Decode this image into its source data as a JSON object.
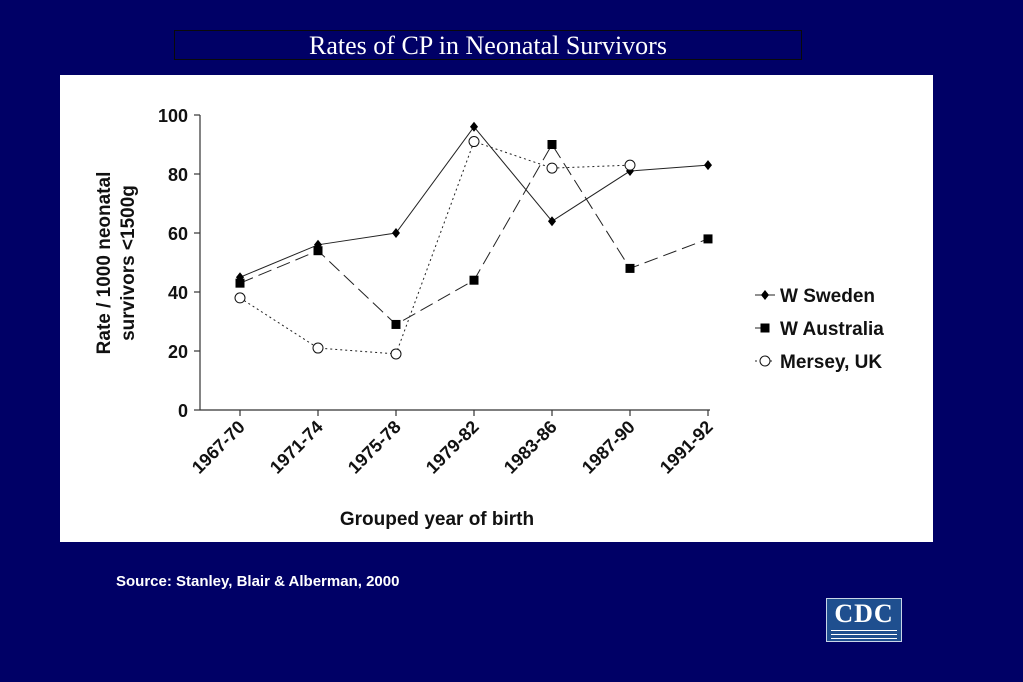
{
  "slide": {
    "title": "Rates of CP in Neonatal Survivors",
    "source": "Source: Stanley, Blair & Alberman, 2000",
    "logo_text": "CDC",
    "background": "#000066"
  },
  "chart_data": {
    "type": "line",
    "title": "",
    "xlabel": "Grouped year of birth",
    "ylabel_lines": [
      "Rate / 1000 neonatal",
      "survivors <1500g"
    ],
    "categories": [
      "1967-70",
      "1971-74",
      "1975-78",
      "1979-82",
      "1983-86",
      "1987-90",
      "1991-92"
    ],
    "ylim": [
      0,
      100
    ],
    "yticks": [
      0,
      20,
      40,
      60,
      80,
      100
    ],
    "grid": false,
    "legend_position": "right",
    "series": [
      {
        "name": "W Sweden",
        "values": [
          45,
          56,
          60,
          96,
          64,
          81,
          83
        ],
        "marker": "diamond",
        "line": "solid",
        "color": "#000000"
      },
      {
        "name": "W Australia",
        "values": [
          43,
          54,
          29,
          44,
          90,
          48,
          58
        ],
        "marker": "square",
        "line": "longdash",
        "color": "#000000"
      },
      {
        "name": "Mersey, UK",
        "values": [
          38,
          21,
          19,
          91,
          82,
          83,
          null
        ],
        "marker": "circle-open",
        "line": "dotted",
        "color": "#000000"
      }
    ]
  }
}
